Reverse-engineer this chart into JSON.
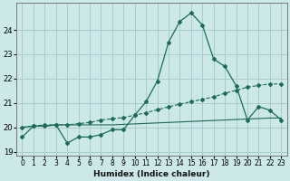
{
  "xlabel": "Humidex (Indice chaleur)",
  "bg_color": "#cce8e8",
  "grid_color": "#aacccc",
  "line_color": "#1a6b5a",
  "x": [
    0,
    1,
    2,
    3,
    4,
    5,
    6,
    7,
    8,
    9,
    10,
    11,
    12,
    13,
    14,
    15,
    16,
    17,
    18,
    19,
    20,
    21,
    22,
    23
  ],
  "y_main": [
    19.6,
    20.05,
    20.05,
    20.1,
    19.35,
    19.6,
    19.6,
    19.7,
    19.9,
    19.9,
    20.5,
    21.05,
    21.9,
    23.5,
    24.35,
    24.7,
    24.2,
    22.8,
    22.5,
    21.7,
    20.3,
    20.85,
    20.7,
    20.3
  ],
  "y_line2": [
    20.0,
    20.05,
    20.1,
    20.1,
    20.1,
    20.15,
    20.2,
    20.3,
    20.35,
    20.4,
    20.5,
    20.6,
    20.72,
    20.84,
    20.95,
    21.05,
    21.15,
    21.25,
    21.4,
    21.52,
    21.65,
    21.72,
    21.78,
    21.78
  ],
  "y_line3": [
    20.0,
    20.05,
    20.05,
    20.1,
    20.1,
    20.1,
    20.1,
    20.1,
    20.1,
    20.12,
    20.14,
    20.16,
    20.18,
    20.2,
    20.22,
    20.24,
    20.26,
    20.28,
    20.3,
    20.32,
    20.34,
    20.36,
    20.38,
    20.38
  ],
  "ylim": [
    18.85,
    25.1
  ],
  "yticks": [
    19,
    20,
    21,
    22,
    23,
    24
  ],
  "xlim": [
    -0.5,
    23.5
  ],
  "marker_size": 2.0,
  "xlabel_fontsize": 6.5,
  "tick_fontsize": 5.5,
  "ytick_fontsize": 6.0
}
